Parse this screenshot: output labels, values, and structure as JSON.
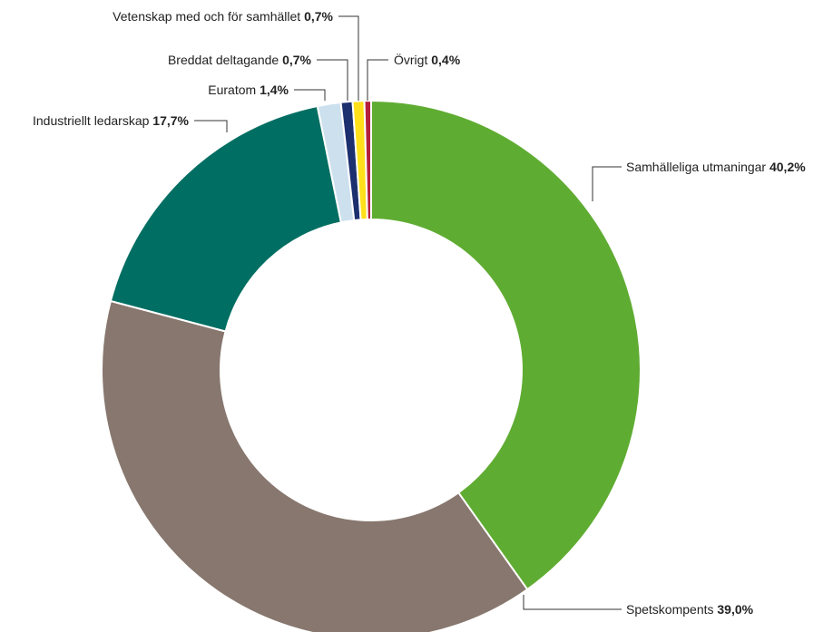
{
  "chart_data": {
    "type": "pie",
    "donut": true,
    "slices": [
      {
        "label": "Samhälleliga utmaningar",
        "value": 40.2,
        "display": "40,2%",
        "color": "#5fac32"
      },
      {
        "label": "Spetskompents",
        "value": 39.0,
        "display": "39,0%",
        "color": "#87776e"
      },
      {
        "label": "Industriellt ledarskap",
        "value": 17.7,
        "display": "17,7%",
        "color": "#006e62"
      },
      {
        "label": "Euratom",
        "value": 1.4,
        "display": "1,4%",
        "color": "#cde0ee"
      },
      {
        "label": "Breddat deltagande",
        "value": 0.7,
        "display": "0,7%",
        "color": "#1c2f6e"
      },
      {
        "label": "Vetenskap med och för samhället",
        "value": 0.7,
        "display": "0,7%",
        "color": "#ffe01b"
      },
      {
        "label": "Övrigt",
        "value": 0.4,
        "display": "0,4%",
        "color": "#b51f3c"
      }
    ]
  }
}
